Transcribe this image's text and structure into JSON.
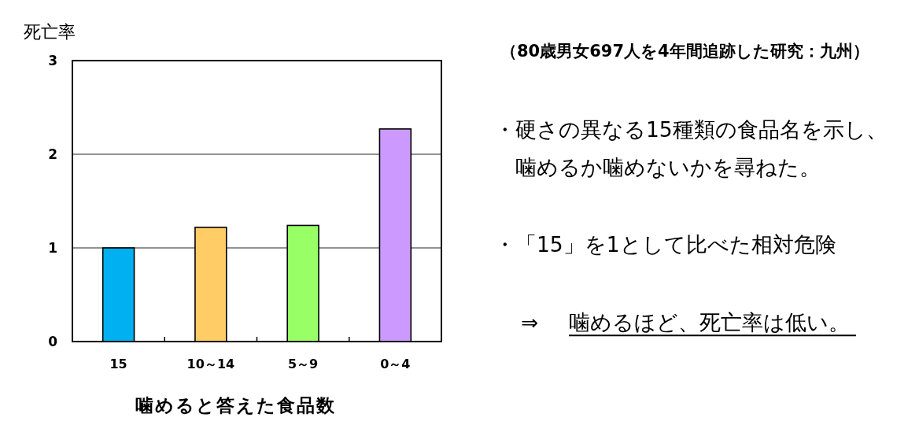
{
  "chart_data": {
    "type": "bar",
    "ylabel": "死亡率",
    "xlabel": "噛めると答えた食品数",
    "annotations": [
      "（80歳男女697人を4年間追跡した研究：九州）",
      "・硬さの異なる15種類の食品名を示し、",
      "噛めるか噛めないかを尋ねた。",
      "・「15」を1として比べた相対危険",
      "⇒",
      "噛めるほど、死亡率は低い。"
    ],
    "categories": [
      "15",
      "10～14",
      "5～9",
      "0～4"
    ],
    "values": [
      1.0,
      1.22,
      1.24,
      2.27
    ],
    "colors": [
      "#00b0f0",
      "#ffcc66",
      "#99ff66",
      "#cc99ff"
    ],
    "ylim": [
      0,
      3
    ],
    "yticks": [
      0,
      1,
      2,
      3
    ],
    "grid": "y"
  }
}
